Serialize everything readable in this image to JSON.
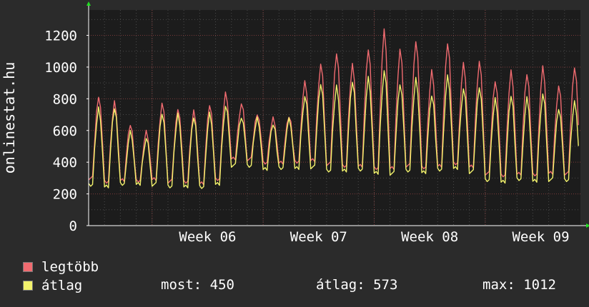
{
  "chart_data": {
    "type": "line",
    "ylabel": "onlinestat.hu",
    "xlabel": "",
    "ylim": [
      0,
      1360
    ],
    "yticks": [
      0,
      200,
      400,
      600,
      800,
      1000,
      1200
    ],
    "xticks": [
      "Week 06",
      "Week 07",
      "Week 08",
      "Week 09"
    ],
    "grid": true,
    "legend_position": "bottom-left",
    "days": 31,
    "series": [
      {
        "name": "legtöbb",
        "color": "#f06b70",
        "daily_peaks": [
          840,
          800,
          650,
          600,
          790,
          760,
          740,
          780,
          850,
          780,
          720,
          690,
          700,
          920,
          1040,
          1120,
          1040,
          1140,
          1260,
          1140,
          1200,
          1000,
          1180,
          1040,
          1060,
          940,
          1000,
          980,
          1020,
          900,
          1030
        ],
        "daily_troughs": [
          300,
          280,
          290,
          280,
          290,
          280,
          280,
          270,
          290,
          420,
          420,
          400,
          400,
          400,
          410,
          390,
          380,
          380,
          360,
          360,
          380,
          370,
          380,
          390,
          370,
          330,
          320,
          330,
          320,
          330,
          330
        ]
      },
      {
        "name": "átlag",
        "color": "#f2f26c",
        "daily_peaks": [
          760,
          760,
          600,
          560,
          730,
          720,
          700,
          720,
          770,
          700,
          690,
          650,
          680,
          830,
          920,
          900,
          930,
          950,
          1000,
          920,
          950,
          840,
          960,
          880,
          900,
          820,
          840,
          820,
          850,
          760,
          800
        ],
        "daily_troughs": [
          260,
          250,
          260,
          260,
          260,
          250,
          250,
          240,
          260,
          380,
          380,
          360,
          360,
          360,
          370,
          350,
          350,
          350,
          330,
          330,
          350,
          340,
          350,
          360,
          340,
          290,
          280,
          290,
          280,
          290,
          290
        ]
      }
    ]
  },
  "legend": {
    "max_label": "legtöbb",
    "avg_label": "átlag"
  },
  "stats": {
    "now": "most: 450",
    "avg": "átlag: 573",
    "max": "max: 1012"
  },
  "colors": {
    "background": "#2b2b2b",
    "plot_background": "#1c1c1c",
    "grid_major": "#7a3a3a",
    "grid_minor": "#4a4a4a",
    "axis_arrow": "#22dd22"
  }
}
